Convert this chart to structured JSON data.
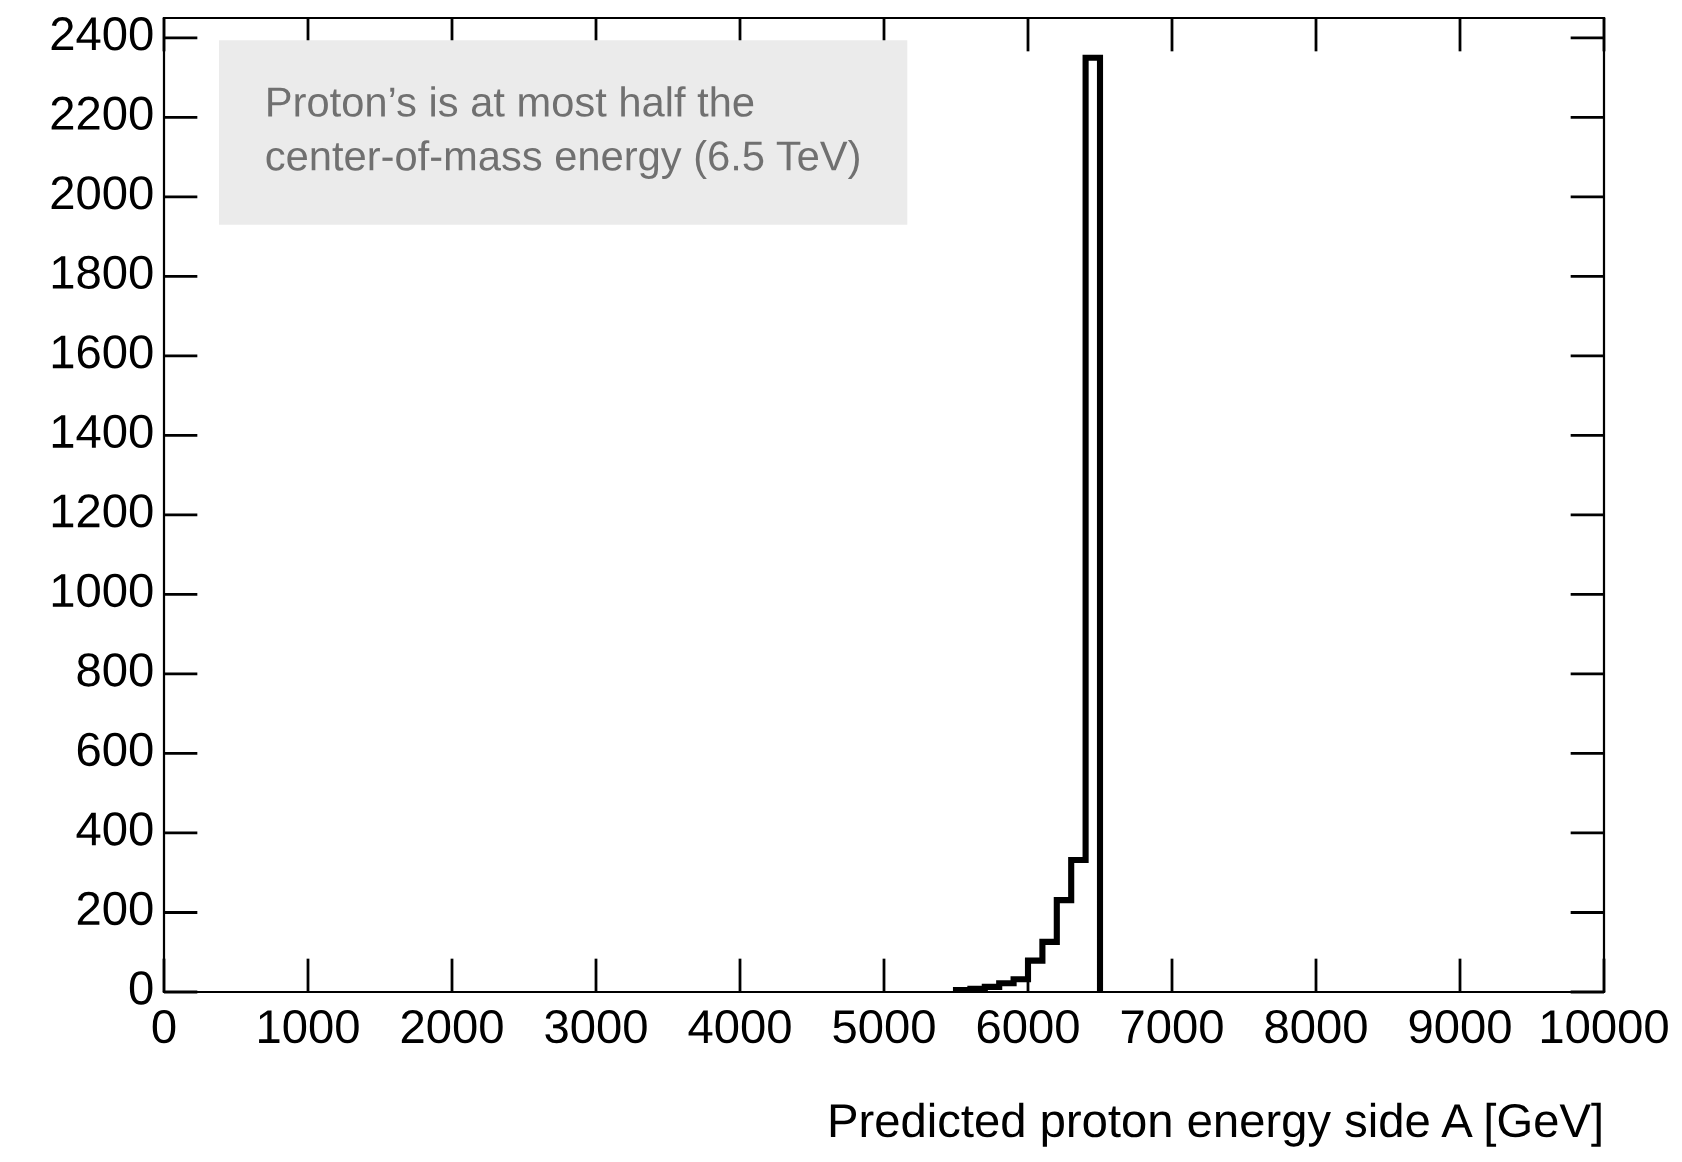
{
  "chart_data": {
    "type": "histogram",
    "xlabel": "Predicted proton energy side A [GeV]",
    "bins": [
      5500,
      5600,
      5700,
      5800,
      5900,
      6000,
      6100,
      6200,
      6300,
      6400,
      6500
    ],
    "values": [
      5,
      8,
      13,
      22,
      32,
      79,
      126,
      231,
      332,
      2350
    ],
    "color": "#000000",
    "xlim": [
      0,
      10000
    ],
    "ylim": [
      0,
      2450
    ],
    "xticks": [
      0,
      1000,
      2000,
      3000,
      4000,
      5000,
      6000,
      7000,
      8000,
      9000,
      10000
    ],
    "yticks": [
      0,
      200,
      400,
      600,
      800,
      1000,
      1200,
      1400,
      1600,
      1800,
      2000,
      2200,
      2400
    ],
    "annotations": [
      "Proton’s is at most half the\ncenter-of-mass energy (6.5 TeV)"
    ],
    "grid": false,
    "legend": false
  }
}
